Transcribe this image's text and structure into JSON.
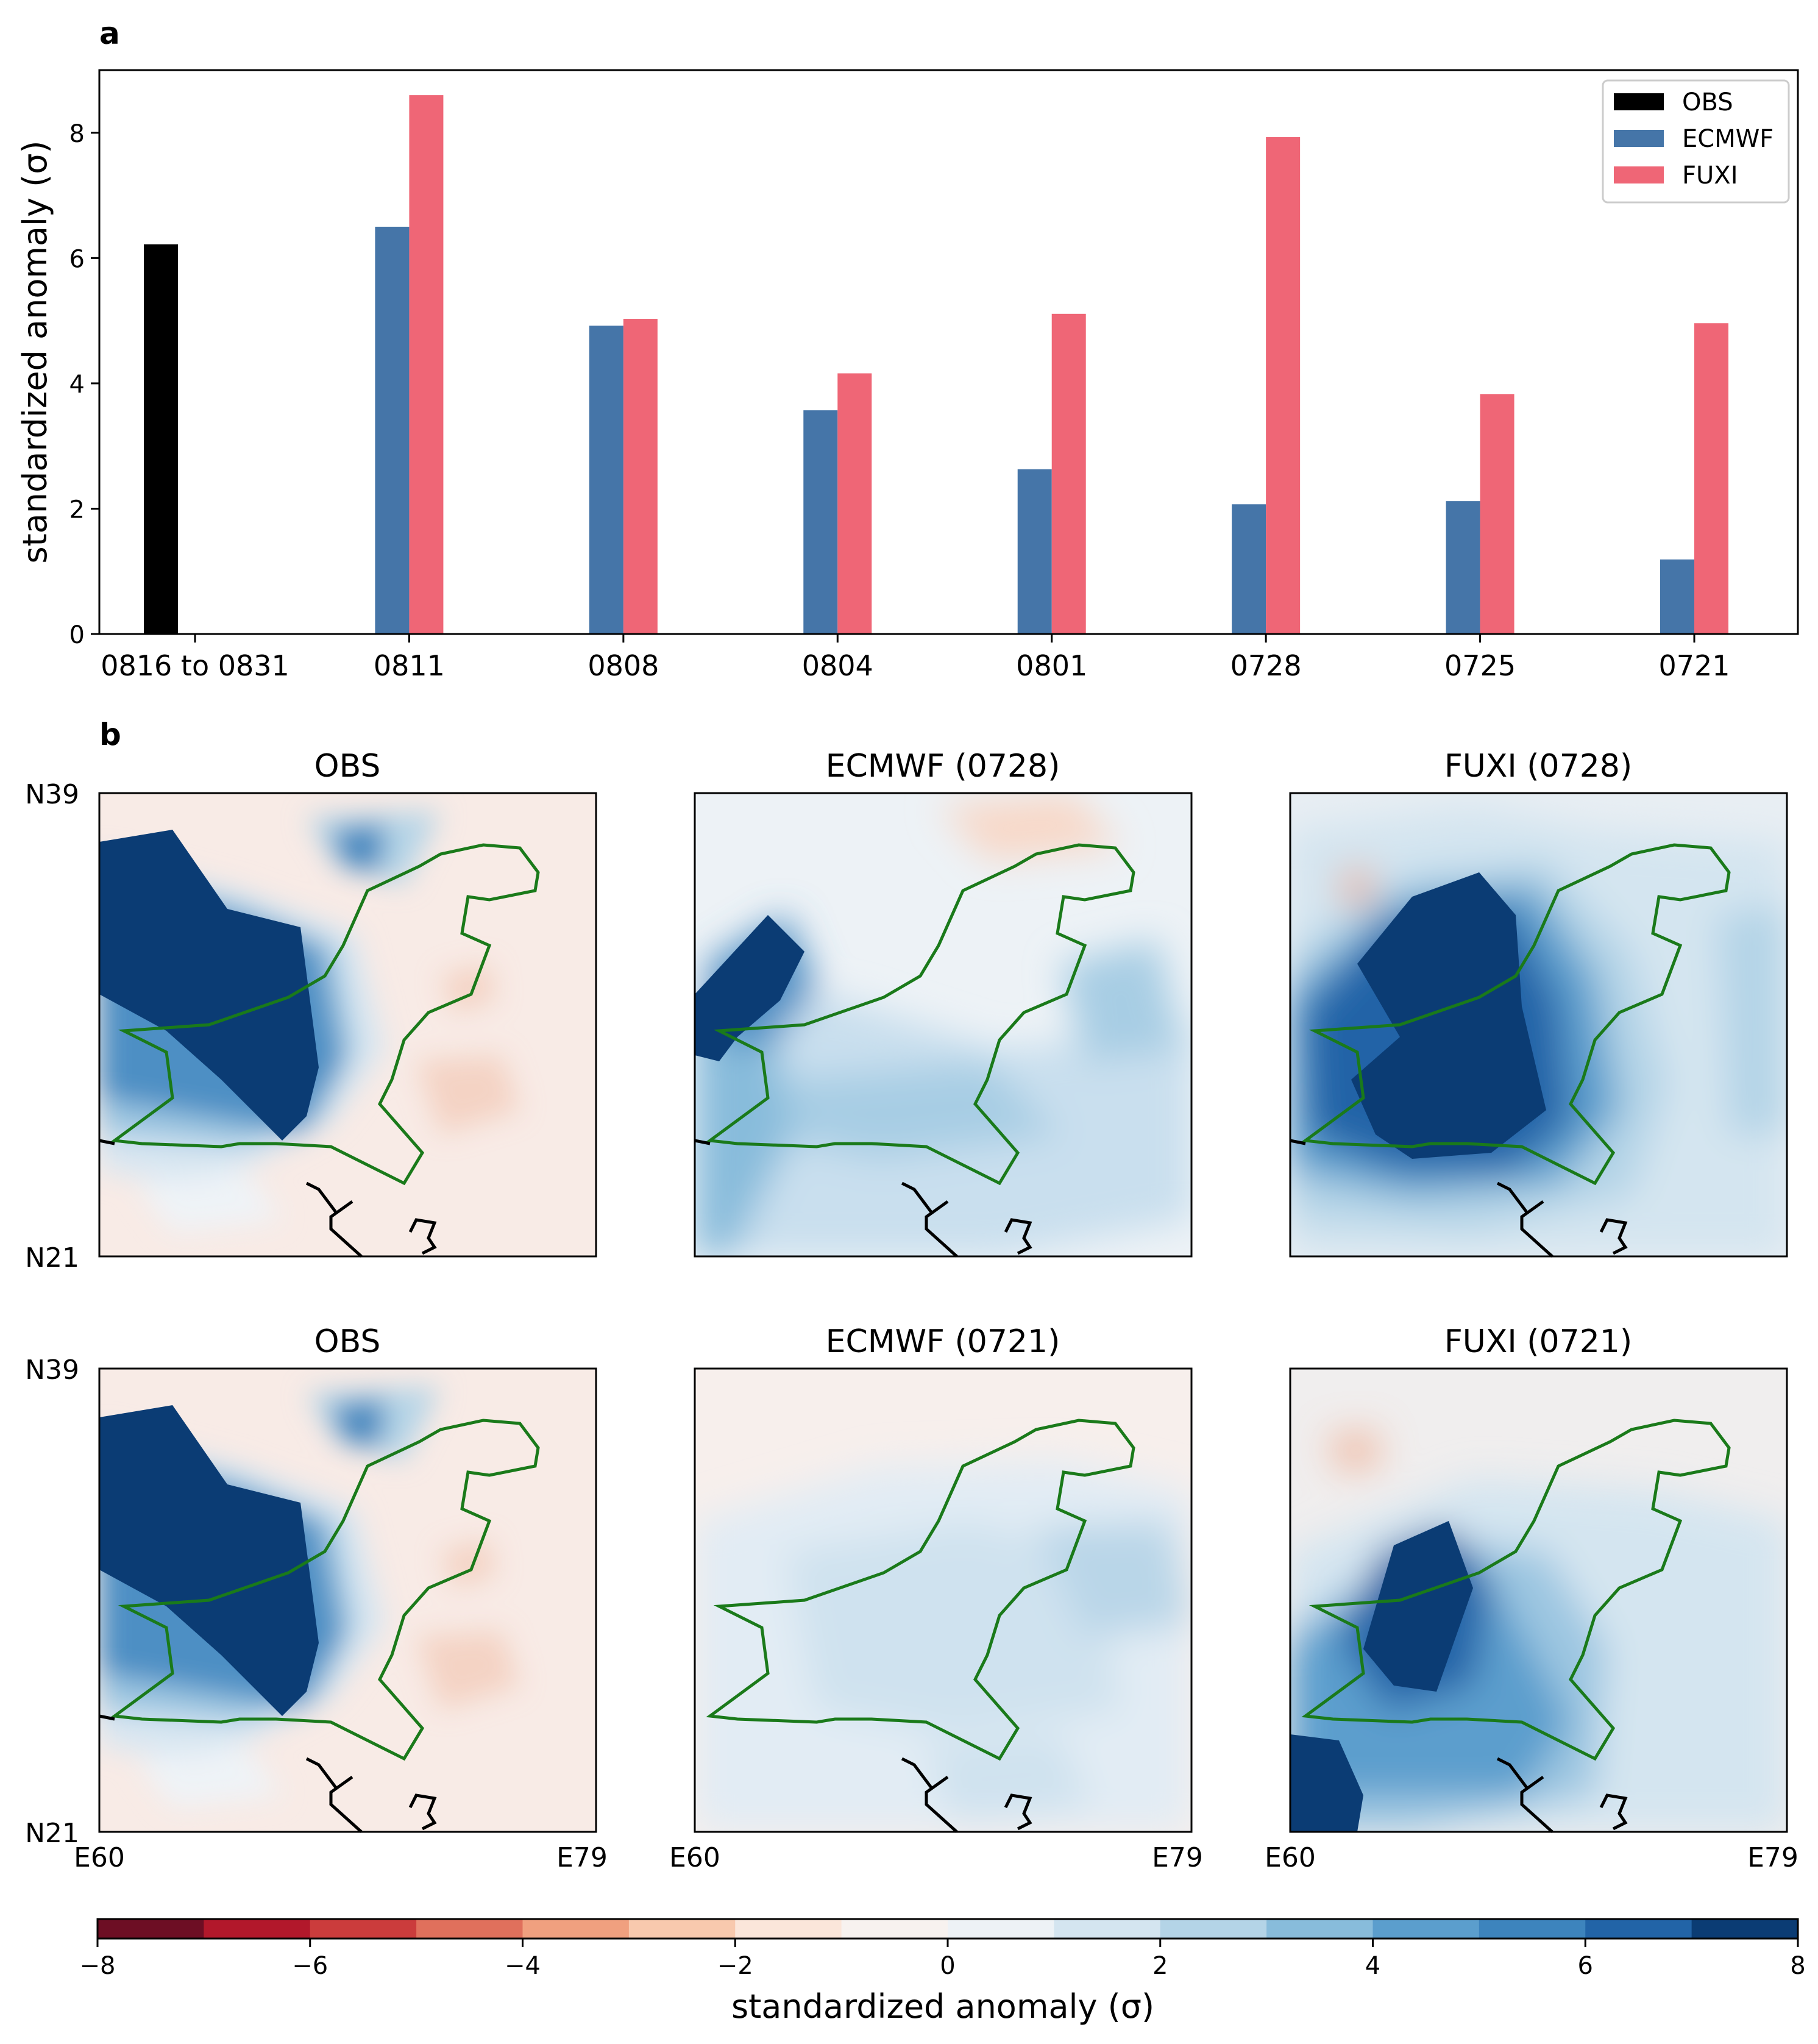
{
  "panel_a_label": "a",
  "panel_b_label": "b",
  "colorbar": {
    "label": "standardized anomaly (σ)",
    "ticks": [
      -8,
      -6,
      -4,
      -2,
      0,
      2,
      4,
      6,
      8
    ],
    "tick_labels": [
      "−8",
      "−6",
      "−4",
      "−2",
      "0",
      "2",
      "4",
      "6",
      "8"
    ],
    "colors": [
      "#6d0e24",
      "#b2182b",
      "#cb3c3c",
      "#e0705c",
      "#f0a07f",
      "#f8c9ae",
      "#fbe6da",
      "#f7f2ef",
      "#edf2f6",
      "#d4e5f0",
      "#b4d4e7",
      "#88bcdb",
      "#5b9ecd",
      "#3d84bd",
      "#2264a7",
      "#0b3c74"
    ]
  },
  "chart_data": [
    {
      "type": "bar",
      "ylabel": "standardized anomaly (σ)",
      "ylim": [
        0,
        9
      ],
      "yticks": [
        0,
        2,
        4,
        6,
        8
      ],
      "categories": [
        "0816 to 0831",
        "0811",
        "0808",
        "0804",
        "0801",
        "0728",
        "0725",
        "0721"
      ],
      "legend": {
        "placement": "top-right"
      },
      "series": [
        {
          "name": "OBS",
          "color": "#000000",
          "values": [
            6.22,
            null,
            null,
            null,
            null,
            null,
            null,
            null
          ]
        },
        {
          "name": "ECMWF",
          "color": "#4575a8",
          "values": [
            null,
            6.5,
            4.92,
            3.57,
            2.63,
            2.07,
            2.12,
            1.19
          ]
        },
        {
          "name": "FUXI",
          "color": "#ef6676",
          "values": [
            null,
            8.6,
            5.03,
            4.16,
            5.11,
            7.93,
            3.83,
            4.96
          ]
        }
      ]
    },
    {
      "type": "heatmap",
      "title": "OBS",
      "yticks": [
        "N39",
        "N21"
      ],
      "xticks": []
    },
    {
      "type": "heatmap",
      "title": "ECMWF (0728)",
      "xticks": []
    },
    {
      "type": "heatmap",
      "title": "FUXI (0728)",
      "xticks": []
    },
    {
      "type": "heatmap",
      "title": "OBS",
      "yticks": [
        "N39",
        "N21"
      ],
      "xticks": [
        "E60",
        "E79"
      ]
    },
    {
      "type": "heatmap",
      "title": "ECMWF (0721)",
      "xticks": [
        "E60",
        "E79"
      ]
    },
    {
      "type": "heatmap",
      "title": "FUXI (0721)",
      "xticks": [
        "E60",
        "E79"
      ]
    }
  ]
}
